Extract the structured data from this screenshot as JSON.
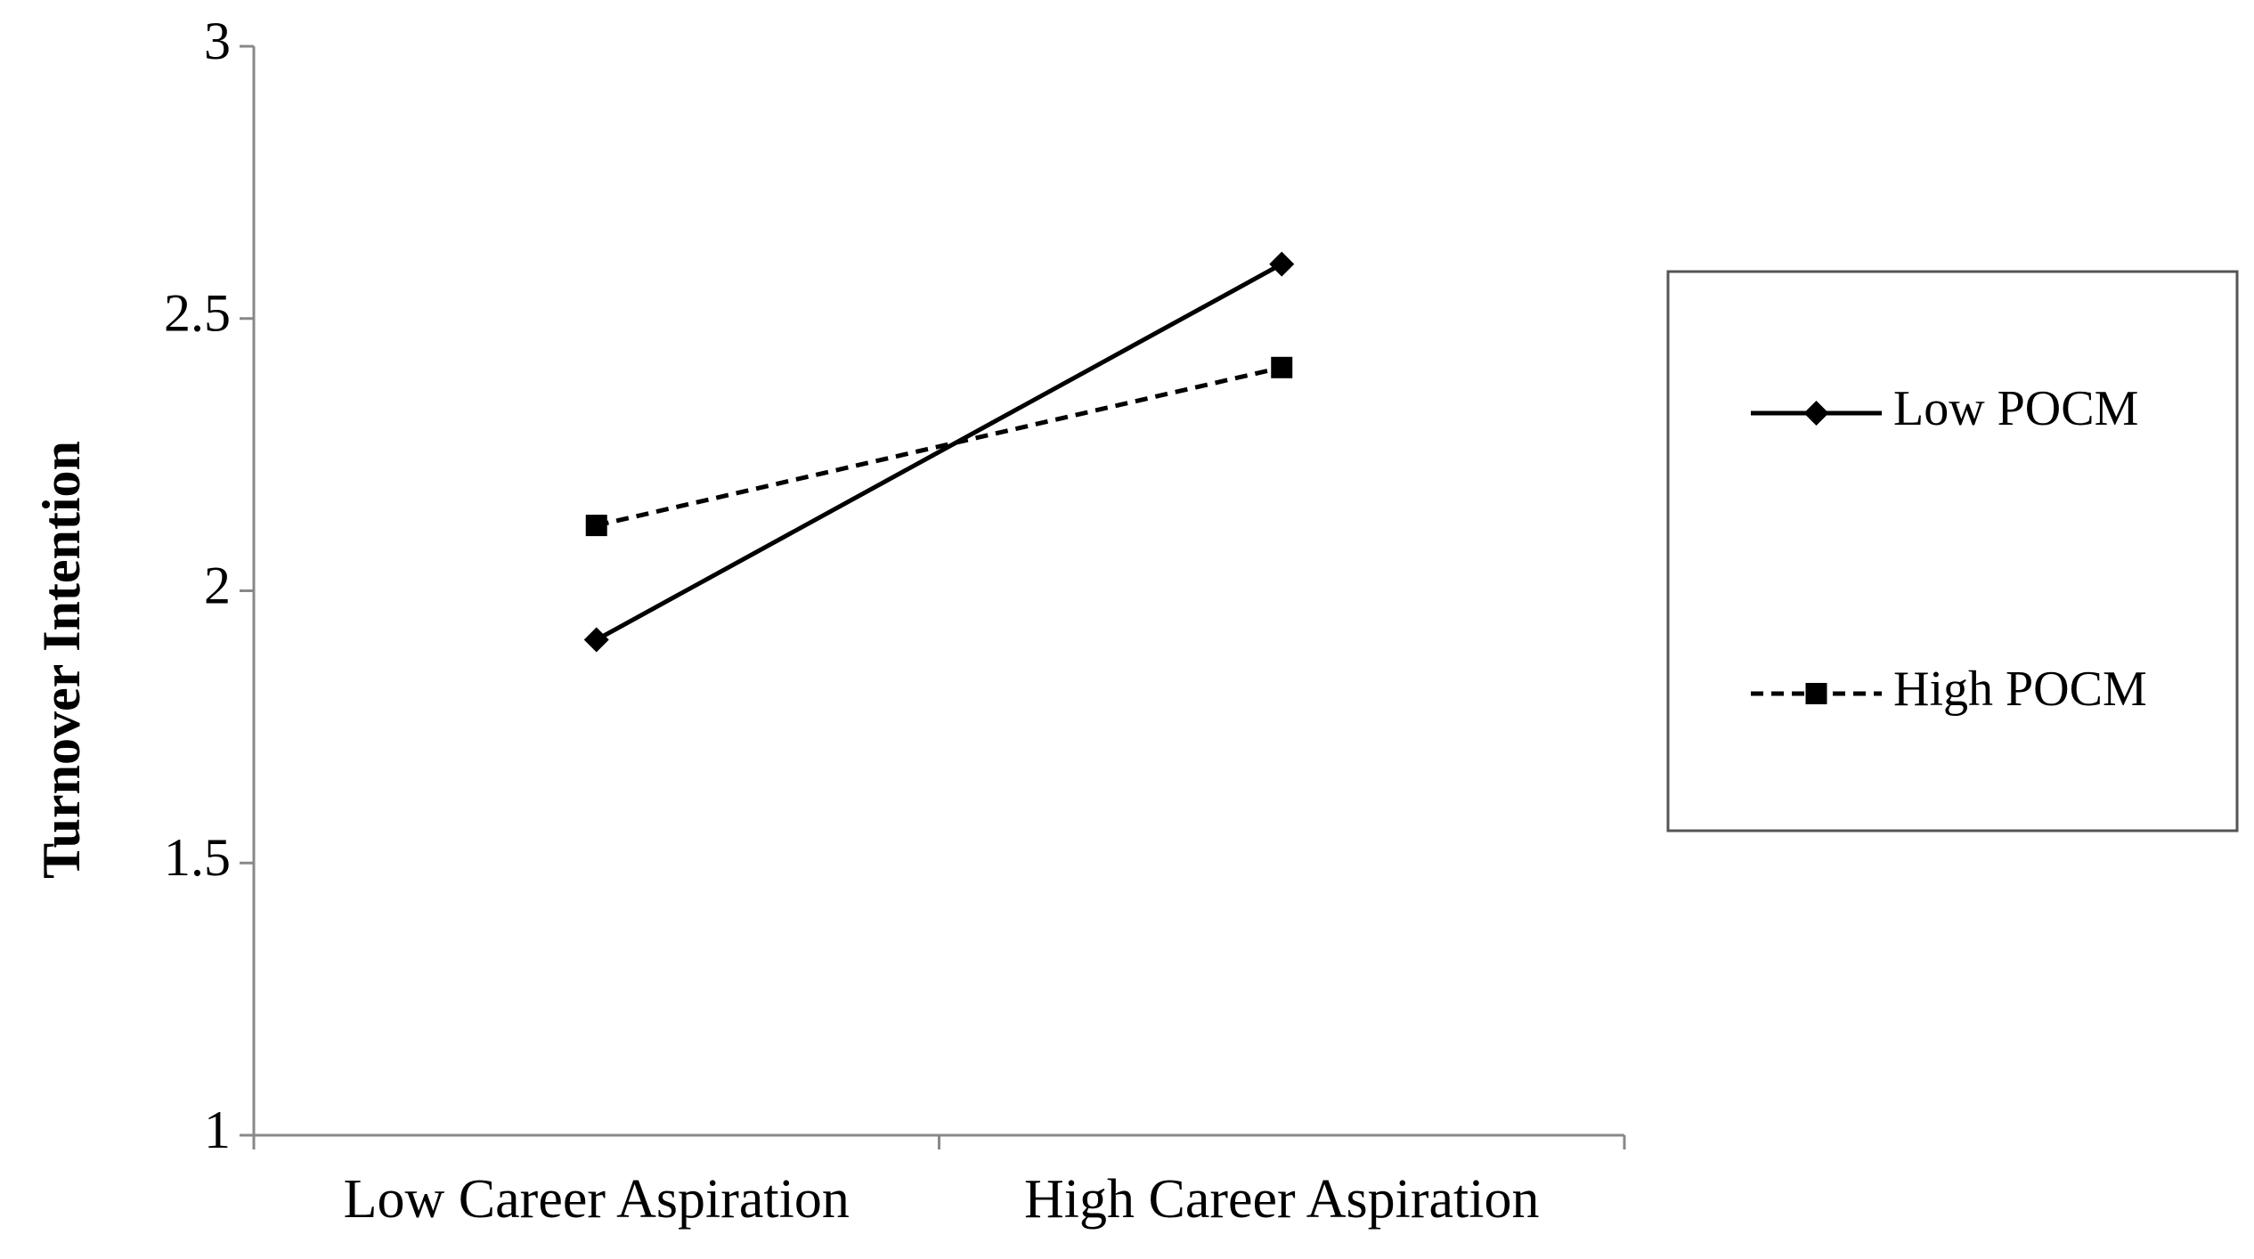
{
  "chart_data": {
    "type": "line",
    "y_label": "Turnover Intention",
    "categories": [
      "Low Career Aspiration",
      "High Career Aspiration"
    ],
    "series": [
      {
        "name": "Low POCM",
        "color": "#000000",
        "line_style": "solid",
        "marker": "diamond",
        "values": [
          1.91,
          2.6
        ]
      },
      {
        "name": "High POCM",
        "color": "#000000",
        "line_style": "dashed",
        "marker": "square",
        "values": [
          2.12,
          2.41
        ]
      }
    ],
    "ylim": [
      1,
      3
    ],
    "yticks": [
      1,
      1.5,
      2,
      2.5,
      3
    ],
    "grid": false,
    "legend": "right"
  }
}
